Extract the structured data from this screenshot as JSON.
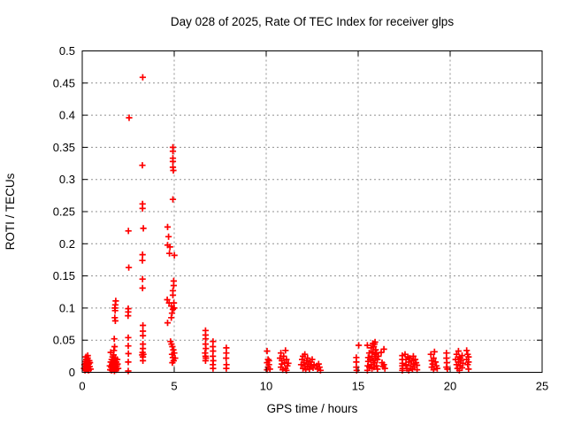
{
  "title": "Day 028 of 2025, Rate Of TEC Index for receiver glps",
  "colors": {
    "marker": "#ff0000",
    "axis": "#000000",
    "grid": "#909090",
    "background": "#ffffff"
  },
  "chart_data": {
    "type": "scatter",
    "title": "Day 028 of 2025, Rate Of TEC Index for receiver glps",
    "xlabel": "GPS time / hours",
    "ylabel": "ROTI / TECUs",
    "xlim": [
      0,
      25
    ],
    "ylim": [
      0,
      0.5
    ],
    "xticks": [
      "0",
      "5",
      "10",
      "15",
      "20",
      "25"
    ],
    "yticks": [
      "0",
      "0.05",
      "0.1",
      "0.15",
      "0.2",
      "0.25",
      "0.3",
      "0.35",
      "0.4",
      "0.45",
      "0.5"
    ],
    "grid": true,
    "legend_position": "none",
    "marker": "plus",
    "marker_color": "#ff0000",
    "series": [
      {
        "name": "ROTI",
        "points": [
          [
            0.1,
            0.006
          ],
          [
            0.12,
            0.012
          ],
          [
            0.15,
            0.003
          ],
          [
            0.15,
            0.017
          ],
          [
            0.18,
            0.009
          ],
          [
            0.2,
            0.014
          ],
          [
            0.2,
            0.005
          ],
          [
            0.22,
            0.02
          ],
          [
            0.25,
            0.008
          ],
          [
            0.25,
            0.016
          ],
          [
            0.28,
            0.004
          ],
          [
            0.3,
            0.011
          ],
          [
            0.3,
            0.022
          ],
          [
            0.32,
            0.007
          ],
          [
            0.35,
            0.013
          ],
          [
            0.35,
            0.003
          ],
          [
            0.38,
            0.018
          ],
          [
            0.4,
            0.009
          ],
          [
            0.42,
            0.015
          ],
          [
            0.45,
            0.005
          ],
          [
            0.3,
            0.026
          ],
          [
            0.2,
            0.024
          ],
          [
            1.82,
            0.111
          ],
          [
            1.8,
            0.105
          ],
          [
            1.77,
            0.1
          ],
          [
            1.79,
            0.096
          ],
          [
            1.77,
            0.085
          ],
          [
            1.8,
            0.08
          ],
          [
            1.74,
            0.052
          ],
          [
            1.76,
            0.04
          ],
          [
            1.55,
            0.031
          ],
          [
            1.72,
            0.034
          ],
          [
            1.5,
            0.01
          ],
          [
            1.52,
            0.004
          ],
          [
            1.55,
            0.016
          ],
          [
            1.57,
            0.008
          ],
          [
            1.6,
            0.02
          ],
          [
            1.6,
            0.003
          ],
          [
            1.62,
            0.012
          ],
          [
            1.65,
            0.006
          ],
          [
            1.65,
            0.024
          ],
          [
            1.68,
            0.015
          ],
          [
            1.7,
            0.009
          ],
          [
            1.7,
            0.027
          ],
          [
            1.72,
            0.005
          ],
          [
            1.75,
            0.018
          ],
          [
            1.75,
            0.002
          ],
          [
            1.78,
            0.012
          ],
          [
            1.8,
            0.022
          ],
          [
            1.82,
            0.007
          ],
          [
            1.85,
            0.016
          ],
          [
            1.85,
            0.004
          ],
          [
            1.88,
            0.01
          ],
          [
            1.9,
            0.02
          ],
          [
            1.92,
            0.013
          ],
          [
            1.95,
            0.006
          ],
          [
            2.55,
            0.396
          ],
          [
            2.51,
            0.22
          ],
          [
            2.53,
            0.163
          ],
          [
            2.5,
            0.099
          ],
          [
            2.5,
            0.094
          ],
          [
            2.49,
            0.088
          ],
          [
            2.5,
            0.054
          ],
          [
            2.5,
            0.041
          ],
          [
            2.51,
            0.029
          ],
          [
            2.5,
            0.016
          ],
          [
            2.5,
            0.002
          ],
          [
            3.29,
            0.459
          ],
          [
            3.27,
            0.322
          ],
          [
            3.28,
            0.262
          ],
          [
            3.28,
            0.255
          ],
          [
            3.32,
            0.224
          ],
          [
            3.28,
            0.183
          ],
          [
            3.27,
            0.174
          ],
          [
            3.28,
            0.145
          ],
          [
            3.28,
            0.131
          ],
          [
            3.3,
            0.073
          ],
          [
            3.3,
            0.064
          ],
          [
            3.3,
            0.057
          ],
          [
            3.3,
            0.044
          ],
          [
            3.3,
            0.037
          ],
          [
            3.28,
            0.031
          ],
          [
            3.26,
            0.027
          ],
          [
            3.3,
            0.024
          ],
          [
            3.32,
            0.028
          ],
          [
            3.3,
            0.018
          ],
          [
            4.93,
            0.35
          ],
          [
            4.93,
            0.344
          ],
          [
            4.93,
            0.333
          ],
          [
            4.93,
            0.328
          ],
          [
            4.93,
            0.319
          ],
          [
            4.95,
            0.314
          ],
          [
            4.93,
            0.269
          ],
          [
            4.64,
            0.226
          ],
          [
            4.69,
            0.211
          ],
          [
            4.64,
            0.198
          ],
          [
            4.77,
            0.195
          ],
          [
            4.74,
            0.185
          ],
          [
            5.01,
            0.182
          ],
          [
            4.97,
            0.142
          ],
          [
            4.97,
            0.135
          ],
          [
            4.93,
            0.127
          ],
          [
            4.93,
            0.12
          ],
          [
            4.62,
            0.113
          ],
          [
            4.72,
            0.108
          ],
          [
            4.98,
            0.108
          ],
          [
            4.84,
            0.103
          ],
          [
            5.0,
            0.1
          ],
          [
            4.93,
            0.098
          ],
          [
            4.88,
            0.092
          ],
          [
            4.84,
            0.085
          ],
          [
            4.64,
            0.077
          ],
          [
            4.8,
            0.048
          ],
          [
            4.85,
            0.044
          ],
          [
            4.9,
            0.04
          ],
          [
            4.95,
            0.035
          ],
          [
            5.0,
            0.03
          ],
          [
            4.88,
            0.028
          ],
          [
            4.93,
            0.023
          ],
          [
            5.05,
            0.022
          ],
          [
            4.97,
            0.018
          ],
          [
            4.9,
            0.015
          ],
          [
            6.7,
            0.065
          ],
          [
            6.7,
            0.058
          ],
          [
            6.71,
            0.052
          ],
          [
            6.7,
            0.044
          ],
          [
            6.72,
            0.037
          ],
          [
            6.68,
            0.03
          ],
          [
            6.7,
            0.025
          ],
          [
            6.72,
            0.022
          ],
          [
            6.7,
            0.018
          ],
          [
            7.11,
            0.048
          ],
          [
            7.1,
            0.04
          ],
          [
            7.11,
            0.033
          ],
          [
            7.1,
            0.025
          ],
          [
            7.12,
            0.018
          ],
          [
            7.1,
            0.012
          ],
          [
            7.11,
            0.006
          ],
          [
            7.83,
            0.038
          ],
          [
            7.83,
            0.03
          ],
          [
            7.82,
            0.022
          ],
          [
            7.84,
            0.012
          ],
          [
            7.83,
            0.006
          ],
          [
            10.05,
            0.033
          ],
          [
            10.1,
            0.02
          ],
          [
            10.05,
            0.015
          ],
          [
            10.15,
            0.012
          ],
          [
            10.1,
            0.008
          ],
          [
            10.2,
            0.005
          ],
          [
            10.05,
            0.004
          ],
          [
            10.15,
            0.018
          ],
          [
            10.8,
            0.03
          ],
          [
            11.05,
            0.034
          ],
          [
            10.75,
            0.022
          ],
          [
            10.85,
            0.018
          ],
          [
            10.95,
            0.025
          ],
          [
            11.0,
            0.015
          ],
          [
            11.1,
            0.02
          ],
          [
            11.15,
            0.01
          ],
          [
            10.8,
            0.008
          ],
          [
            10.9,
            0.004
          ],
          [
            11.05,
            0.006
          ],
          [
            11.2,
            0.014
          ],
          [
            11.1,
            0.003
          ],
          [
            10.85,
            0.013
          ],
          [
            11.9,
            0.012
          ],
          [
            11.95,
            0.02
          ],
          [
            12.0,
            0.006
          ],
          [
            12.0,
            0.025
          ],
          [
            12.05,
            0.015
          ],
          [
            12.1,
            0.01
          ],
          [
            12.1,
            0.028
          ],
          [
            12.15,
            0.004
          ],
          [
            12.2,
            0.018
          ],
          [
            12.25,
            0.008
          ],
          [
            12.25,
            0.022
          ],
          [
            12.3,
            0.013
          ],
          [
            12.35,
            0.005
          ],
          [
            12.4,
            0.016
          ],
          [
            12.45,
            0.01
          ],
          [
            12.5,
            0.02
          ],
          [
            12.55,
            0.007
          ],
          [
            12.6,
            0.012
          ],
          [
            12.75,
            0.01
          ],
          [
            12.8,
            0.005
          ],
          [
            12.85,
            0.013
          ],
          [
            12.9,
            0.008
          ],
          [
            12.95,
            0.003
          ],
          [
            14.9,
            0.023
          ],
          [
            14.9,
            0.016
          ],
          [
            14.9,
            0.008
          ],
          [
            14.92,
            0.003
          ],
          [
            15.03,
            0.042
          ],
          [
            15.5,
            0.042
          ],
          [
            15.55,
            0.023
          ],
          [
            15.55,
            0.017
          ],
          [
            15.52,
            0.01
          ],
          [
            15.5,
            0.003
          ],
          [
            15.6,
            0.03
          ],
          [
            15.65,
            0.02
          ],
          [
            15.7,
            0.038
          ],
          [
            15.7,
            0.012
          ],
          [
            15.75,
            0.025
          ],
          [
            15.8,
            0.045
          ],
          [
            15.8,
            0.032
          ],
          [
            15.82,
            0.018
          ],
          [
            15.85,
            0.04
          ],
          [
            15.85,
            0.008
          ],
          [
            15.9,
            0.028
          ],
          [
            15.9,
            0.015
          ],
          [
            15.95,
            0.035
          ],
          [
            15.95,
            0.022
          ],
          [
            16.0,
            0.01
          ],
          [
            16.0,
            0.03
          ],
          [
            16.05,
            0.02
          ],
          [
            16.05,
            0.005
          ],
          [
            16.1,
            0.025
          ],
          [
            15.75,
            0.006
          ],
          [
            15.6,
            0.008
          ],
          [
            15.88,
            0.044
          ],
          [
            15.92,
            0.047
          ],
          [
            16.25,
            0.031
          ],
          [
            16.3,
            0.015
          ],
          [
            16.35,
            0.009
          ],
          [
            16.4,
            0.036
          ],
          [
            16.4,
            0.012
          ],
          [
            16.45,
            0.006
          ],
          [
            17.4,
            0.026
          ],
          [
            17.4,
            0.02
          ],
          [
            17.41,
            0.014
          ],
          [
            17.4,
            0.01
          ],
          [
            17.42,
            0.006
          ],
          [
            17.4,
            0.003
          ],
          [
            17.55,
            0.028
          ],
          [
            17.6,
            0.02
          ],
          [
            17.6,
            0.012
          ],
          [
            17.65,
            0.006
          ],
          [
            17.7,
            0.024
          ],
          [
            17.75,
            0.016
          ],
          [
            17.75,
            0.003
          ],
          [
            17.8,
            0.022
          ],
          [
            17.85,
            0.01
          ],
          [
            17.9,
            0.018
          ],
          [
            17.95,
            0.005
          ],
          [
            18.0,
            0.025
          ],
          [
            18.0,
            0.013
          ],
          [
            18.05,
            0.008
          ],
          [
            18.1,
            0.02
          ],
          [
            18.15,
            0.015
          ],
          [
            18.2,
            0.004
          ],
          [
            18.2,
            0.011
          ],
          [
            18.95,
            0.028
          ],
          [
            19.0,
            0.018
          ],
          [
            19.0,
            0.008
          ],
          [
            19.05,
            0.013
          ],
          [
            19.1,
            0.022
          ],
          [
            19.1,
            0.004
          ],
          [
            19.15,
            0.032
          ],
          [
            19.2,
            0.016
          ],
          [
            19.25,
            0.01
          ],
          [
            19.3,
            0.006
          ],
          [
            19.8,
            0.03
          ],
          [
            19.8,
            0.022
          ],
          [
            19.82,
            0.015
          ],
          [
            19.8,
            0.008
          ],
          [
            19.85,
            0.005
          ],
          [
            20.3,
            0.02
          ],
          [
            20.35,
            0.012
          ],
          [
            20.35,
            0.028
          ],
          [
            20.4,
            0.006
          ],
          [
            20.45,
            0.033
          ],
          [
            20.45,
            0.016
          ],
          [
            20.5,
            0.024
          ],
          [
            20.5,
            0.003
          ],
          [
            20.55,
            0.01
          ],
          [
            20.6,
            0.019
          ],
          [
            20.65,
            0.026
          ],
          [
            20.65,
            0.007
          ],
          [
            20.7,
            0.014
          ],
          [
            20.55,
            0.022
          ],
          [
            20.9,
            0.034
          ],
          [
            20.9,
            0.02
          ],
          [
            20.95,
            0.012
          ],
          [
            21.0,
            0.024
          ],
          [
            21.0,
            0.005
          ],
          [
            20.95,
            0.028
          ],
          [
            21.0,
            0.016
          ]
        ]
      }
    ]
  }
}
